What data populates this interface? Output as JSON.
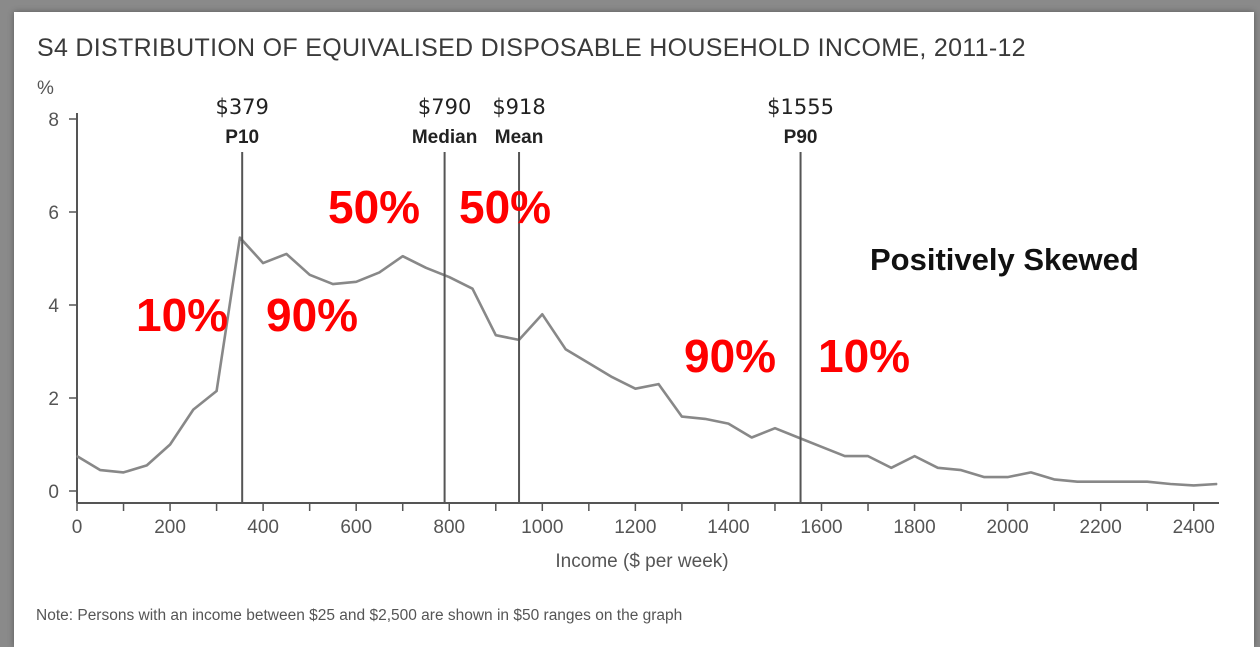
{
  "chart_data": {
    "type": "line",
    "title": "S4 DISTRIBUTION OF EQUIVALISED DISPOSABLE HOUSEHOLD INCOME, 2011-12",
    "xlabel": "Income ($ per week)",
    "ylabel": "%",
    "xlim": [
      0,
      2450
    ],
    "ylim": [
      0,
      8
    ],
    "x_ticks": [
      "0",
      "200",
      "400",
      "600",
      "800",
      "1000",
      "1200",
      "1400",
      "1600",
      "1800",
      "2000",
      "2200",
      "2400"
    ],
    "y_ticks": [
      "0",
      "2",
      "4",
      "6",
      "8"
    ],
    "grid": false,
    "series": [
      {
        "x": [
          0,
          50,
          100,
          150,
          200,
          250,
          300,
          350,
          400,
          450,
          500,
          550,
          600,
          650,
          700,
          750,
          800,
          850,
          900,
          950,
          1000,
          1050,
          1100,
          1150,
          1200,
          1250,
          1300,
          1350,
          1400,
          1450,
          1500,
          1550,
          1600,
          1650,
          1700,
          1750,
          1800,
          1850,
          1900,
          1950,
          2000,
          2050,
          2100,
          2150,
          2200,
          2250,
          2300,
          2350,
          2400,
          2450
        ],
        "y": [
          0.75,
          0.45,
          0.4,
          0.55,
          1.0,
          1.75,
          2.15,
          5.45,
          4.9,
          5.1,
          4.65,
          4.45,
          4.5,
          4.7,
          5.05,
          4.8,
          4.6,
          4.35,
          3.35,
          3.25,
          3.8,
          3.05,
          2.75,
          2.45,
          2.2,
          2.3,
          1.6,
          1.55,
          1.45,
          1.15,
          1.35,
          1.15,
          0.95,
          0.75,
          0.75,
          0.5,
          0.75,
          0.5,
          0.45,
          0.3,
          0.3,
          0.4,
          0.25,
          0.2,
          0.2,
          0.2,
          0.2,
          0.15,
          0.12,
          0.15
        ]
      }
    ],
    "markers": [
      {
        "x": 355,
        "value": "$379",
        "label": "P10"
      },
      {
        "x": 790,
        "value": "$790",
        "label": "Median"
      },
      {
        "x": 950,
        "value": "$918",
        "label": "Mean"
      },
      {
        "x": 1555,
        "value": "$1555",
        "label": "P90"
      }
    ],
    "annotations": [
      {
        "text": "10%",
        "color": "#ff0000"
      },
      {
        "text": "90%",
        "color": "#ff0000"
      },
      {
        "text": "50%",
        "color": "#ff0000"
      },
      {
        "text": "50%",
        "color": "#ff0000"
      },
      {
        "text": "90%",
        "color": "#ff0000"
      },
      {
        "text": "10%",
        "color": "#ff0000"
      },
      {
        "text": "Positively Skewed",
        "color": "#111111"
      }
    ],
    "note": "Note: Persons with an income between $25 and $2,500 are shown in $50 ranges on the graph"
  },
  "colors": {
    "line": "#888888",
    "axis": "#555555",
    "marker_line": "#555555",
    "annotation_red": "#ff0000",
    "background": "#ffffff"
  }
}
